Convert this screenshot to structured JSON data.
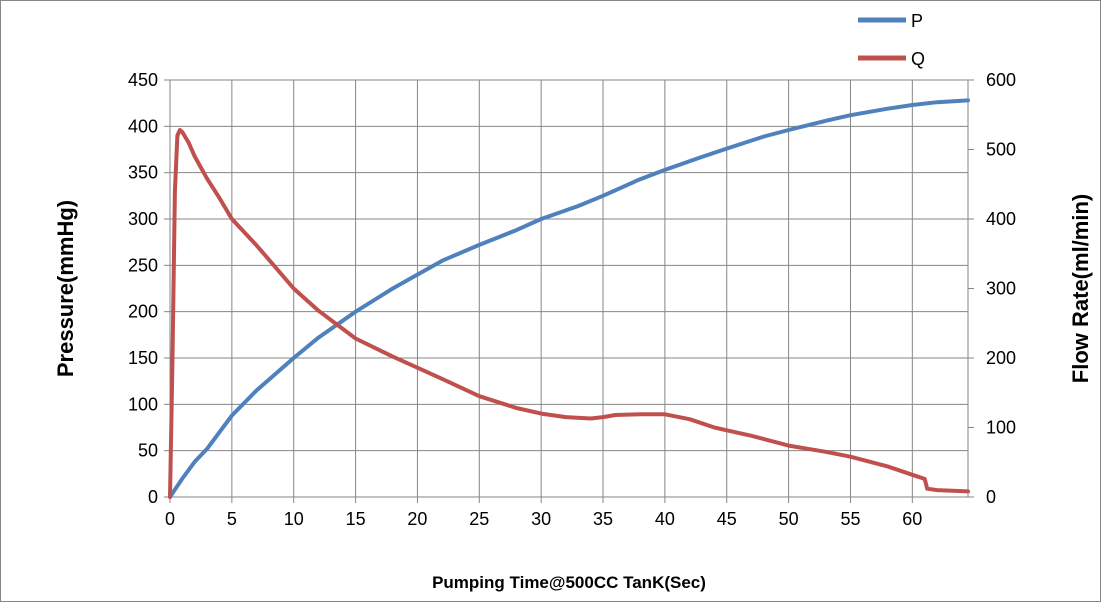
{
  "chart_data": {
    "type": "line",
    "title": "",
    "xlabel": "Pumping Time@500CC TanK(Sec)",
    "ylabel_left": "Pressure(mmHg)",
    "ylabel_right": "Flow Rate(ml/min)",
    "xlim": [
      0,
      64.5
    ],
    "ylim_left": [
      0,
      450
    ],
    "ylim_right": [
      0,
      600
    ],
    "x_ticks": [
      0,
      5,
      10,
      15,
      20,
      25,
      30,
      35,
      40,
      45,
      50,
      55,
      60
    ],
    "y_left_ticks": [
      0,
      50,
      100,
      150,
      200,
      250,
      300,
      350,
      400,
      450
    ],
    "y_right_ticks": [
      0,
      100,
      200,
      300,
      400,
      500,
      600
    ],
    "grid": true,
    "legend_position": "top-right",
    "series": [
      {
        "name": "P",
        "axis": "left",
        "color": "#4F81BD",
        "x": [
          0,
          0.5,
          1,
          2,
          3,
          5,
          7,
          10,
          12,
          15,
          18,
          20,
          22,
          25,
          28,
          30,
          33,
          35,
          38,
          40,
          43,
          45,
          48,
          50,
          53,
          55,
          58,
          60,
          62,
          64.5
        ],
        "y": [
          0,
          10,
          20,
          38,
          52,
          88,
          115,
          150,
          172,
          200,
          225,
          240,
          255,
          272,
          288,
          300,
          314,
          325,
          343,
          353,
          367,
          376,
          389,
          396,
          406,
          412,
          419,
          423,
          426,
          428
        ]
      },
      {
        "name": "Q",
        "axis": "right",
        "color": "#C0504D",
        "x": [
          0,
          0.2,
          0.4,
          0.6,
          0.8,
          1,
          1.5,
          2,
          3,
          4,
          5,
          7,
          10,
          12,
          15,
          18,
          20,
          22,
          25,
          28,
          30,
          32,
          34,
          35,
          36,
          38,
          40,
          42,
          44,
          45,
          47,
          50,
          53,
          55,
          58,
          60,
          61,
          61.2,
          62,
          64.5
        ],
        "y": [
          0,
          200,
          440,
          520,
          528,
          525,
          510,
          490,
          458,
          430,
          400,
          362,
          300,
          268,
          228,
          202,
          186,
          170,
          145,
          128,
          120,
          115,
          113,
          115,
          118,
          119,
          119,
          112,
          100,
          96,
          88,
          74,
          65,
          58,
          44,
          32,
          26,
          12,
          10,
          8
        ]
      }
    ]
  }
}
